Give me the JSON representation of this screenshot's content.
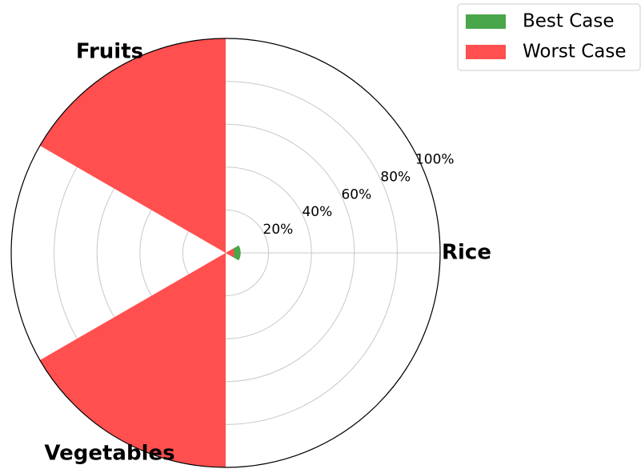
{
  "chart_data": {
    "type": "polar_bar",
    "categories": [
      "Rice",
      "Fruits",
      "Vegetables"
    ],
    "series": [
      {
        "name": "Best Case",
        "color": "#4aa64a",
        "values": [
          7,
          0,
          0
        ]
      },
      {
        "name": "Worst Case",
        "color": "#ff4f4f",
        "values": [
          4,
          100,
          100
        ]
      }
    ],
    "ylim": [
      0,
      100
    ],
    "yticks": [
      {
        "value": 20,
        "label": "20%"
      },
      {
        "value": 40,
        "label": "40%"
      },
      {
        "value": 60,
        "label": "60%"
      },
      {
        "value": 80,
        "label": "80%"
      },
      {
        "value": 100,
        "label": "100%"
      }
    ],
    "grid": true,
    "legend": "upper right"
  }
}
